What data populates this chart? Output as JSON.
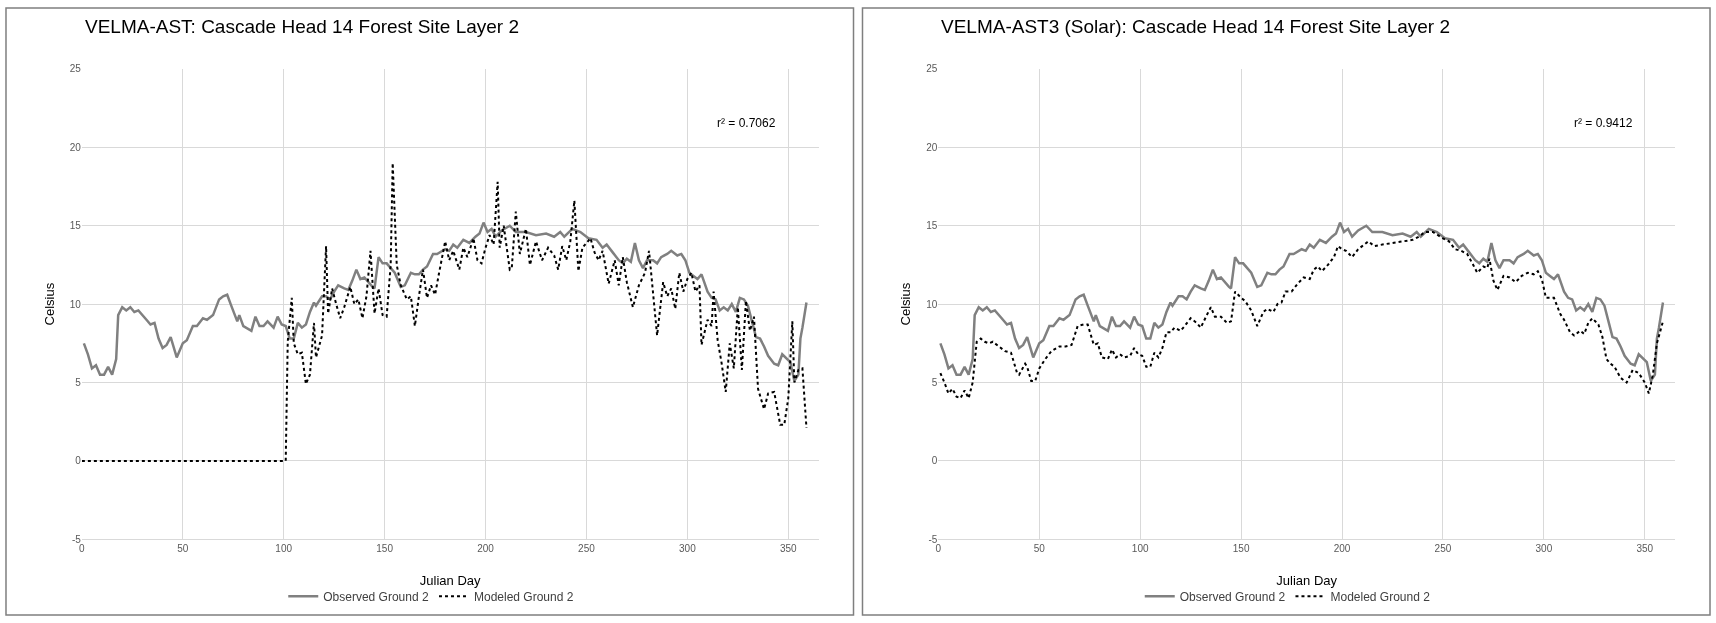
{
  "chart_data": [
    {
      "type": "line",
      "title": "VELMA-AST: Cascade Head 14 Forest Site Layer 2",
      "xlabel": "Julian Day",
      "ylabel": "Celsius",
      "annotations": [
        "r² = 0.7062"
      ],
      "xlim": [
        0,
        365
      ],
      "xticks": [
        0,
        50,
        100,
        150,
        200,
        250,
        300,
        350
      ],
      "ylim": [
        -5,
        25
      ],
      "yticks": [
        -5,
        0,
        5,
        10,
        15,
        20,
        25
      ],
      "grid": true,
      "legend": "bottom",
      "marker": "none",
      "series": [
        {
          "name": "Observed Ground 2",
          "color": "#808080",
          "line_style": "solid",
          "x": [
            1,
            3,
            5,
            7,
            9,
            11,
            13,
            15,
            17,
            18,
            20,
            22,
            24,
            26,
            28,
            32,
            34,
            36,
            38,
            40,
            42,
            44,
            47,
            50,
            52,
            55,
            57,
            60,
            62,
            65,
            68,
            70,
            72,
            74,
            77,
            78,
            80,
            84,
            86,
            88,
            90,
            92,
            95,
            97,
            99,
            101,
            103,
            105,
            107,
            109,
            111,
            113,
            115,
            116,
            119,
            121,
            123,
            125,
            127,
            130,
            132,
            134,
            136,
            138,
            140,
            144,
            145,
            147,
            149,
            151,
            155,
            158,
            160,
            163,
            165,
            167,
            169,
            171,
            174,
            176,
            180,
            182,
            184,
            186,
            189,
            192,
            195,
            197,
            199,
            201,
            203,
            205,
            208,
            212,
            215,
            220,
            225,
            230,
            234,
            237,
            239,
            243,
            247,
            251,
            255,
            258,
            260,
            263,
            266,
            268,
            270,
            272,
            274,
            276,
            278,
            280,
            283,
            285,
            287,
            290,
            292,
            295,
            297,
            299,
            301,
            303,
            305,
            307,
            310,
            312,
            314,
            316,
            318,
            320,
            322,
            324,
            326,
            328,
            330,
            332,
            334,
            336,
            338,
            340,
            343,
            345,
            347,
            351,
            353,
            355,
            356,
            357,
            359
          ],
          "values": [
            7.5,
            6.8,
            5.9,
            6.1,
            5.5,
            5.5,
            6.0,
            5.5,
            6.5,
            9.3,
            9.8,
            9.6,
            9.8,
            9.5,
            9.6,
            9.0,
            8.7,
            8.8,
            7.8,
            7.2,
            7.4,
            7.9,
            6.6,
            7.5,
            7.7,
            8.6,
            8.6,
            9.1,
            9.0,
            9.3,
            10.3,
            10.5,
            10.6,
            9.9,
            8.9,
            9.3,
            8.6,
            8.3,
            9.2,
            8.6,
            8.6,
            8.9,
            8.5,
            9.2,
            8.7,
            8.6,
            7.8,
            7.8,
            8.8,
            8.5,
            8.7,
            9.5,
            10.1,
            9.9,
            10.5,
            10.5,
            10.3,
            10.8,
            11.2,
            11.0,
            10.9,
            11.5,
            12.2,
            11.6,
            11.7,
            11.1,
            11.0,
            13.0,
            12.6,
            12.6,
            12.0,
            11.1,
            11.2,
            12.0,
            11.9,
            11.9,
            12.2,
            12.4,
            13.2,
            13.2,
            13.5,
            13.4,
            13.8,
            13.6,
            14.1,
            13.9,
            14.3,
            14.5,
            15.2,
            14.6,
            14.8,
            14.3,
            14.7,
            15.0,
            14.6,
            14.6,
            14.4,
            14.5,
            14.3,
            14.6,
            14.3,
            14.8,
            14.6,
            14.2,
            14.1,
            13.6,
            13.8,
            13.3,
            12.8,
            12.6,
            12.9,
            12.7,
            13.9,
            12.8,
            12.3,
            12.8,
            12.8,
            12.6,
            13.0,
            13.2,
            13.4,
            13.1,
            13.2,
            12.8,
            12.0,
            11.8,
            11.6,
            11.9,
            10.8,
            10.4,
            10.3,
            9.6,
            9.8,
            9.6,
            10.0,
            9.5,
            10.4,
            10.3,
            9.9,
            8.9,
            7.9,
            7.8,
            7.3,
            6.7,
            6.2,
            6.1,
            6.8,
            6.3,
            5.1,
            5.5,
            7.8,
            8.5,
            10.1
          ]
        },
        {
          "name": "Modeled Ground 2",
          "color": "#000000",
          "line_style": "dotted",
          "x": [
            0,
            101,
            102,
            104,
            105,
            107,
            109,
            111,
            113,
            115,
            116,
            119,
            121,
            122,
            124,
            126,
            128,
            130,
            133,
            135,
            137,
            139,
            141,
            143,
            145,
            147,
            149,
            151,
            153,
            154,
            156,
            158,
            161,
            163,
            165,
            167,
            169,
            171,
            173,
            175,
            177,
            180,
            182,
            184,
            187,
            189,
            191,
            194,
            196,
            198,
            200,
            202,
            204,
            206,
            207,
            209,
            212,
            213,
            215,
            217,
            220,
            222,
            225,
            228,
            231,
            234,
            236,
            238,
            240,
            242,
            244,
            246,
            248,
            252,
            254,
            256,
            258,
            261,
            264,
            266,
            268,
            270,
            273,
            276,
            279,
            281,
            283,
            285,
            288,
            290,
            292,
            294,
            296,
            298,
            300,
            302,
            304,
            306,
            307,
            310,
            312,
            313,
            315,
            317,
            319,
            321,
            323,
            325,
            327,
            329,
            331,
            333,
            335,
            338,
            340,
            343,
            346,
            348,
            350,
            352,
            353,
            355,
            357,
            359
          ],
          "values": [
            0,
            0,
            7.6,
            10.4,
            7.5,
            6.8,
            6.9,
            4.9,
            5.5,
            8.8,
            6.6,
            8.0,
            13.7,
            9.4,
            11.0,
            10.0,
            9.1,
            9.8,
            11.1,
            10.0,
            10.3,
            9.1,
            10.5,
            13.4,
            9.4,
            11.0,
            9.3,
            9.2,
            12.5,
            19.0,
            12.5,
            11.2,
            10.3,
            10.5,
            8.6,
            10.5,
            12.2,
            10.4,
            11.2,
            10.6,
            12.0,
            14.0,
            12.8,
            13.4,
            12.2,
            13.6,
            13.0,
            14.2,
            12.8,
            12.6,
            13.6,
            14.4,
            13.8,
            17.8,
            13.6,
            15.0,
            12.2,
            12.3,
            15.9,
            13.2,
            14.8,
            12.5,
            14.0,
            12.8,
            13.6,
            13.1,
            12.2,
            13.7,
            12.8,
            14.0,
            16.6,
            12.1,
            13.6,
            14.2,
            13.3,
            12.8,
            13.4,
            11.3,
            12.8,
            11.2,
            13.0,
            11.4,
            9.8,
            11.2,
            12.0,
            13.4,
            10.7,
            8.0,
            11.4,
            10.5,
            11.0,
            9.7,
            12.0,
            10.8,
            11.6,
            12.0,
            10.8,
            11.2,
            7.4,
            9.0,
            8.6,
            10.8,
            7.7,
            6.2,
            4.4,
            7.5,
            5.9,
            9.8,
            5.8,
            10.2,
            8.3,
            9.2,
            4.6,
            3.3,
            4.3,
            4.4,
            2.3,
            2.3,
            4.0,
            8.9,
            5.0,
            5.8,
            5.9,
            2.1
          ]
        }
      ]
    },
    {
      "type": "line",
      "title": "VELMA-AST3 (Solar): Cascade Head 14 Forest Site Layer 2",
      "xlabel": "Julian Day",
      "ylabel": "Celsius",
      "annotations": [
        "r² = 0.9412"
      ],
      "xlim": [
        0,
        365
      ],
      "xticks": [
        0,
        50,
        100,
        150,
        200,
        250,
        300,
        350
      ],
      "ylim": [
        -5,
        25
      ],
      "yticks": [
        -5,
        0,
        5,
        10,
        15,
        20,
        25
      ],
      "grid": true,
      "legend": "bottom",
      "marker": "none",
      "series": [
        {
          "name": "Observed Ground 2",
          "color": "#808080",
          "line_style": "solid",
          "x": [
            1,
            3,
            5,
            7,
            9,
            11,
            13,
            15,
            17,
            18,
            20,
            22,
            24,
            26,
            28,
            32,
            34,
            36,
            38,
            40,
            42,
            44,
            47,
            50,
            52,
            55,
            57,
            60,
            62,
            65,
            68,
            70,
            72,
            74,
            77,
            78,
            80,
            84,
            86,
            88,
            90,
            92,
            95,
            97,
            99,
            101,
            103,
            105,
            107,
            109,
            111,
            113,
            115,
            116,
            119,
            121,
            123,
            125,
            127,
            130,
            132,
            134,
            136,
            138,
            140,
            144,
            145,
            147,
            149,
            151,
            155,
            158,
            160,
            163,
            165,
            167,
            169,
            171,
            174,
            176,
            180,
            182,
            184,
            186,
            189,
            192,
            195,
            197,
            199,
            201,
            203,
            205,
            208,
            212,
            215,
            220,
            225,
            230,
            234,
            237,
            239,
            243,
            247,
            251,
            255,
            258,
            260,
            263,
            266,
            268,
            270,
            272,
            274,
            276,
            278,
            280,
            283,
            285,
            287,
            290,
            292,
            295,
            297,
            299,
            301,
            303,
            305,
            307,
            310,
            312,
            314,
            316,
            318,
            320,
            322,
            324,
            326,
            328,
            330,
            332,
            334,
            336,
            338,
            340,
            343,
            345,
            347,
            351,
            353,
            355,
            356,
            357,
            359
          ],
          "values": [
            7.5,
            6.8,
            5.9,
            6.1,
            5.5,
            5.5,
            6.0,
            5.5,
            6.5,
            9.3,
            9.8,
            9.6,
            9.8,
            9.5,
            9.6,
            9.0,
            8.7,
            8.8,
            7.8,
            7.2,
            7.4,
            7.9,
            6.6,
            7.5,
            7.7,
            8.6,
            8.6,
            9.1,
            9.0,
            9.3,
            10.3,
            10.5,
            10.6,
            9.9,
            8.9,
            9.3,
            8.6,
            8.3,
            9.2,
            8.6,
            8.6,
            8.9,
            8.5,
            9.2,
            8.7,
            8.6,
            7.8,
            7.8,
            8.8,
            8.5,
            8.7,
            9.5,
            10.1,
            9.9,
            10.5,
            10.5,
            10.3,
            10.8,
            11.2,
            11.0,
            10.9,
            11.5,
            12.2,
            11.6,
            11.7,
            11.1,
            11.0,
            13.0,
            12.6,
            12.6,
            12.0,
            11.1,
            11.2,
            12.0,
            11.9,
            11.9,
            12.2,
            12.4,
            13.2,
            13.2,
            13.5,
            13.4,
            13.8,
            13.6,
            14.1,
            13.9,
            14.3,
            14.5,
            15.2,
            14.6,
            14.8,
            14.3,
            14.7,
            15.0,
            14.6,
            14.6,
            14.4,
            14.5,
            14.3,
            14.6,
            14.3,
            14.8,
            14.6,
            14.2,
            14.1,
            13.6,
            13.8,
            13.3,
            12.8,
            12.6,
            12.9,
            12.7,
            13.9,
            12.8,
            12.3,
            12.8,
            12.8,
            12.6,
            13.0,
            13.2,
            13.4,
            13.1,
            13.2,
            12.8,
            12.0,
            11.8,
            11.6,
            11.9,
            10.8,
            10.4,
            10.3,
            9.6,
            9.8,
            9.6,
            10.0,
            9.5,
            10.4,
            10.3,
            9.9,
            8.9,
            7.9,
            7.8,
            7.3,
            6.7,
            6.2,
            6.1,
            6.8,
            6.3,
            5.1,
            5.5,
            7.8,
            8.5,
            10.1
          ]
        },
        {
          "name": "Modeled Ground 2",
          "color": "#000000",
          "line_style": "dotted",
          "x": [
            1,
            3,
            5,
            7,
            9,
            11,
            13,
            15,
            17,
            19,
            21,
            23,
            25,
            27,
            30,
            33,
            36,
            39,
            40,
            43,
            44,
            46,
            48,
            50,
            53,
            56,
            60,
            63,
            66,
            69,
            72,
            74,
            77,
            79,
            81,
            84,
            86,
            88,
            90,
            92,
            95,
            97,
            99,
            101,
            103,
            105,
            107,
            109,
            111,
            113,
            115,
            117,
            120,
            122,
            125,
            128,
            130,
            133,
            135,
            137,
            140,
            143,
            145,
            147,
            150,
            152,
            155,
            158,
            161,
            163,
            166,
            168,
            170,
            172,
            175,
            178,
            181,
            184,
            186,
            188,
            190,
            193,
            196,
            198,
            200,
            202,
            205,
            208,
            210,
            213,
            216,
            220,
            225,
            230,
            235,
            238,
            241,
            245,
            250,
            253,
            256,
            259,
            262,
            265,
            267,
            270,
            272,
            273,
            275,
            277,
            280,
            283,
            286,
            289,
            292,
            295,
            297,
            299,
            301,
            305,
            308,
            310,
            313,
            315,
            318,
            320,
            322,
            324,
            327,
            329,
            331,
            333,
            335,
            338,
            341,
            344,
            347,
            350,
            352,
            354,
            356,
            359
          ],
          "values": [
            5.6,
            5.0,
            4.3,
            4.6,
            4.1,
            4.0,
            4.5,
            4.0,
            5.0,
            7.6,
            7.8,
            7.6,
            7.5,
            7.6,
            7.3,
            7.0,
            6.9,
            5.6,
            5.5,
            6.2,
            6.0,
            5.1,
            5.1,
            5.9,
            6.5,
            7.0,
            7.3,
            7.3,
            7.4,
            8.6,
            8.7,
            8.7,
            7.4,
            7.5,
            6.6,
            6.5,
            7.1,
            6.6,
            6.8,
            6.6,
            6.7,
            7.2,
            6.8,
            6.7,
            6.0,
            6.0,
            6.9,
            6.6,
            7.2,
            8.2,
            8.2,
            8.5,
            8.3,
            8.6,
            9.1,
            8.8,
            8.5,
            9.3,
            9.8,
            9.2,
            9.2,
            8.8,
            8.9,
            10.8,
            10.4,
            10.2,
            9.6,
            8.6,
            9.5,
            9.7,
            9.5,
            10.0,
            10.1,
            10.8,
            10.8,
            11.3,
            11.7,
            11.6,
            12.2,
            12.4,
            12.1,
            12.5,
            13.0,
            13.7,
            13.5,
            13.4,
            13.0,
            13.5,
            13.7,
            14.0,
            13.7,
            13.8,
            13.9,
            14.0,
            14.1,
            14.3,
            14.6,
            14.6,
            14.2,
            14.0,
            13.5,
            13.4,
            13.2,
            12.5,
            12.0,
            12.4,
            12.3,
            12.9,
            11.5,
            10.9,
            11.8,
            11.7,
            11.4,
            11.8,
            12.0,
            11.9,
            12.1,
            11.6,
            10.4,
            10.4,
            9.4,
            9.0,
            8.2,
            8.0,
            8.3,
            8.1,
            8.8,
            9.1,
            8.7,
            7.9,
            6.5,
            6.2,
            6.0,
            5.3,
            5.0,
            5.8,
            5.6,
            5.0,
            4.3,
            5.5,
            7.5,
            8.9
          ]
        }
      ]
    }
  ]
}
